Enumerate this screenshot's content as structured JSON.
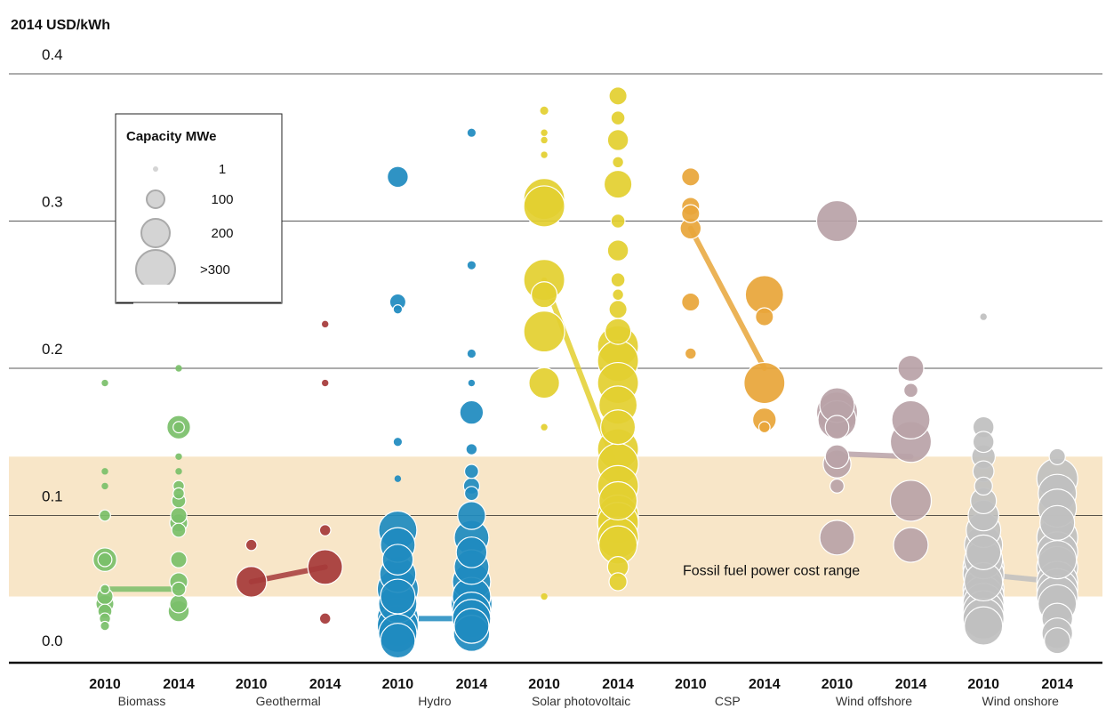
{
  "chart_data": {
    "type": "scatter",
    "ylabel": "2014 USD/kWh",
    "ylim": [
      0,
      0.4
    ],
    "yticks": [
      "0.0",
      "0.1",
      "0.2",
      "0.3",
      "0.4"
    ],
    "grid": true,
    "band": {
      "label": "Fossil fuel power cost range",
      "range": [
        0.045,
        0.14
      ],
      "color": "#f8e6c8"
    },
    "legend": {
      "title": "Capacity MWe",
      "placement": "top-left",
      "entries": [
        {
          "label": "1",
          "capacity": 1
        },
        {
          "label": "100",
          "capacity": 100
        },
        {
          "label": "200",
          "capacity": 200
        },
        {
          "label": ">300",
          "capacity": 300
        }
      ]
    },
    "technologies": [
      {
        "name": "Biomass",
        "color": "#7bbf6a",
        "y2010": {
          "label": "2010",
          "points": [
            [
              0.19,
              1
            ],
            [
              0.13,
              1
            ],
            [
              0.12,
              1
            ],
            [
              0.1,
              10
            ],
            [
              0.07,
              80
            ],
            [
              0.07,
              20
            ],
            [
              0.05,
              5
            ],
            [
              0.045,
              30
            ],
            [
              0.04,
              40
            ],
            [
              0.035,
              20
            ],
            [
              0.03,
              10
            ],
            [
              0.025,
              5
            ]
          ]
        },
        "y2014": {
          "label": "2014",
          "points": [
            [
              0.2,
              1
            ],
            [
              0.16,
              80
            ],
            [
              0.16,
              10
            ],
            [
              0.14,
              1
            ],
            [
              0.13,
              1
            ],
            [
              0.12,
              10
            ],
            [
              0.115,
              10
            ],
            [
              0.11,
              20
            ],
            [
              0.1,
              30
            ],
            [
              0.095,
              40
            ],
            [
              0.09,
              20
            ],
            [
              0.07,
              30
            ],
            [
              0.055,
              40
            ],
            [
              0.05,
              20
            ],
            [
              0.04,
              40
            ],
            [
              0.035,
              60
            ]
          ]
        },
        "mean": [
          0.05,
          0.05
        ]
      },
      {
        "name": "Geothermal",
        "color": "#a63a3a",
        "y2010": {
          "label": "2010",
          "points": [
            [
              0.08,
              10
            ],
            [
              0.055,
              150
            ]
          ]
        },
        "y2014": {
          "label": "2014",
          "points": [
            [
              0.23,
              1
            ],
            [
              0.19,
              1
            ],
            [
              0.09,
              10
            ],
            [
              0.065,
              200
            ],
            [
              0.03,
              10
            ]
          ]
        },
        "mean": [
          0.055,
          0.065
        ]
      },
      {
        "name": "Hydro",
        "color": "#1f8bc0",
        "y2010": {
          "label": "2010",
          "points": [
            [
              0.33,
              60
            ],
            [
              0.245,
              30
            ],
            [
              0.24,
              5
            ],
            [
              0.15,
              5
            ],
            [
              0.125,
              1
            ],
            [
              0.09,
              250
            ],
            [
              0.08,
              200
            ],
            [
              0.07,
              150
            ],
            [
              0.06,
              220
            ],
            [
              0.05,
              300
            ],
            [
              0.045,
              200
            ],
            [
              0.04,
              250
            ],
            [
              0.03,
              300
            ],
            [
              0.025,
              300
            ],
            [
              0.02,
              250
            ],
            [
              0.015,
              200
            ]
          ]
        },
        "y2014": {
          "label": "2014",
          "points": [
            [
              0.36,
              5
            ],
            [
              0.27,
              5
            ],
            [
              0.21,
              5
            ],
            [
              0.19,
              1
            ],
            [
              0.17,
              80
            ],
            [
              0.145,
              10
            ],
            [
              0.13,
              20
            ],
            [
              0.12,
              30
            ],
            [
              0.115,
              20
            ],
            [
              0.1,
              120
            ],
            [
              0.085,
              200
            ],
            [
              0.075,
              150
            ],
            [
              0.065,
              200
            ],
            [
              0.055,
              250
            ],
            [
              0.045,
              250
            ],
            [
              0.04,
              300
            ],
            [
              0.035,
              250
            ],
            [
              0.03,
              250
            ],
            [
              0.025,
              200
            ],
            [
              0.02,
              220
            ]
          ]
        },
        "mean": [
          0.03,
          0.03
        ]
      },
      {
        "name": "Solar photovoltaic",
        "color": "#e3d030",
        "y2010": {
          "label": "2010",
          "points": [
            [
              0.375,
              5
            ],
            [
              0.36,
              1
            ],
            [
              0.355,
              1
            ],
            [
              0.345,
              1
            ],
            [
              0.315,
              300
            ],
            [
              0.31,
              300
            ],
            [
              0.26,
              300
            ],
            [
              0.25,
              100
            ],
            [
              0.225,
              300
            ],
            [
              0.19,
              150
            ],
            [
              0.16,
              1
            ],
            [
              0.045,
              1
            ]
          ]
        },
        "y2014": {
          "label": "2014",
          "points": [
            [
              0.385,
              40
            ],
            [
              0.37,
              20
            ],
            [
              0.355,
              60
            ],
            [
              0.34,
              10
            ],
            [
              0.325,
              120
            ],
            [
              0.3,
              20
            ],
            [
              0.28,
              60
            ],
            [
              0.26,
              20
            ],
            [
              0.25,
              10
            ],
            [
              0.24,
              40
            ],
            [
              0.225,
              100
            ],
            [
              0.215,
              300
            ],
            [
              0.205,
              300
            ],
            [
              0.19,
              300
            ],
            [
              0.175,
              250
            ],
            [
              0.16,
              200
            ],
            [
              0.145,
              300
            ],
            [
              0.135,
              300
            ],
            [
              0.12,
              300
            ],
            [
              0.11,
              250
            ],
            [
              0.1,
              300
            ],
            [
              0.095,
              300
            ],
            [
              0.085,
              300
            ],
            [
              0.08,
              250
            ],
            [
              0.065,
              60
            ],
            [
              0.055,
              40
            ]
          ]
        },
        "mean": [
          0.26,
          0.13
        ]
      },
      {
        "name": "CSP",
        "color": "#e8a63a",
        "y2010": {
          "label": "2010",
          "points": [
            [
              0.33,
              40
            ],
            [
              0.31,
              40
            ],
            [
              0.305,
              40
            ],
            [
              0.295,
              60
            ],
            [
              0.245,
              40
            ],
            [
              0.21,
              10
            ]
          ]
        },
        "y2014": {
          "label": "2014",
          "points": [
            [
              0.25,
              250
            ],
            [
              0.235,
              40
            ],
            [
              0.19,
              300
            ],
            [
              0.165,
              80
            ],
            [
              0.16,
              10
            ]
          ]
        },
        "mean": [
          0.295,
          0.2
        ]
      },
      {
        "name": "Wind offshore",
        "color": "#b9a2a8",
        "y2010": {
          "label": "2010",
          "points": [
            [
              0.3,
              300
            ],
            [
              0.175,
              200
            ],
            [
              0.17,
              300
            ],
            [
              0.165,
              250
            ],
            [
              0.16,
              80
            ],
            [
              0.14,
              80
            ],
            [
              0.135,
              120
            ],
            [
              0.12,
              20
            ],
            [
              0.085,
              200
            ]
          ]
        },
        "y2014": {
          "label": "2014",
          "points": [
            [
              0.2,
              100
            ],
            [
              0.185,
              20
            ],
            [
              0.165,
              250
            ],
            [
              0.15,
              300
            ],
            [
              0.11,
              300
            ],
            [
              0.08,
              200
            ]
          ]
        },
        "mean": [
          0.142,
          0.14
        ]
      },
      {
        "name": "Wind onshore",
        "color": "#c0c0c0",
        "y2010": {
          "label": "2010",
          "points": [
            [
              0.235,
              1
            ],
            [
              0.16,
              60
            ],
            [
              0.15,
              60
            ],
            [
              0.14,
              80
            ],
            [
              0.13,
              60
            ],
            [
              0.12,
              40
            ],
            [
              0.11,
              100
            ],
            [
              0.1,
              150
            ],
            [
              0.09,
              200
            ],
            [
              0.08,
              250
            ],
            [
              0.075,
              200
            ],
            [
              0.07,
              250
            ],
            [
              0.065,
              300
            ],
            [
              0.06,
              300
            ],
            [
              0.055,
              250
            ],
            [
              0.05,
              300
            ],
            [
              0.045,
              300
            ],
            [
              0.04,
              300
            ],
            [
              0.035,
              300
            ],
            [
              0.03,
              300
            ],
            [
              0.025,
              250
            ]
          ]
        },
        "y2014": {
          "label": "2014",
          "points": [
            [
              0.14,
              30
            ],
            [
              0.125,
              300
            ],
            [
              0.115,
              250
            ],
            [
              0.105,
              250
            ],
            [
              0.095,
              200
            ],
            [
              0.085,
              300
            ],
            [
              0.075,
              300
            ],
            [
              0.07,
              250
            ],
            [
              0.065,
              300
            ],
            [
              0.055,
              300
            ],
            [
              0.05,
              300
            ],
            [
              0.045,
              300
            ],
            [
              0.04,
              250
            ],
            [
              0.03,
              150
            ],
            [
              0.02,
              150
            ],
            [
              0.015,
              100
            ]
          ]
        },
        "mean": [
          0.06,
          0.055
        ]
      }
    ]
  }
}
